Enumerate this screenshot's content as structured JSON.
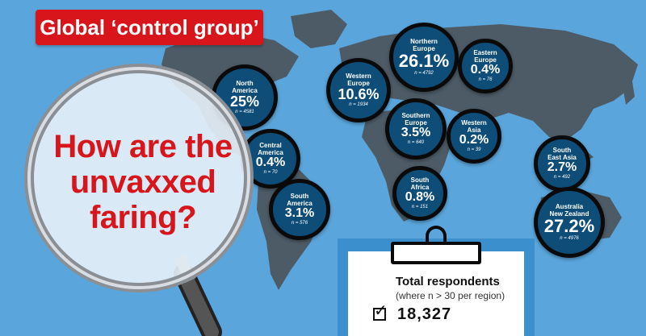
{
  "header": {
    "badge": "Global ‘control group’"
  },
  "headline": [
    "How are the",
    "unvaxxed",
    "faring?"
  ],
  "regions": [
    {
      "id": "north-america",
      "name": [
        "North",
        "America"
      ],
      "percent": "25%",
      "n": "n = 4581"
    },
    {
      "id": "central-america",
      "name": [
        "Central",
        "America"
      ],
      "percent": "0.4%",
      "n": "n = 70"
    },
    {
      "id": "south-america",
      "name": [
        "South",
        "America"
      ],
      "percent": "3.1%",
      "n": "n = 576"
    },
    {
      "id": "western-europe",
      "name": [
        "Western",
        "Europe"
      ],
      "percent": "10.6%",
      "n": "n = 1934"
    },
    {
      "id": "northern-europe",
      "name": [
        "Northern",
        "Europe"
      ],
      "percent": "26.1%",
      "n": "n = 4792"
    },
    {
      "id": "eastern-europe",
      "name": [
        "Eastern",
        "Europe"
      ],
      "percent": "0.4%",
      "n": "n = 76"
    },
    {
      "id": "southern-europe",
      "name": [
        "Southern",
        "Europe"
      ],
      "percent": "3.5%",
      "n": "n = 640"
    },
    {
      "id": "western-asia",
      "name": [
        "Western",
        "Asia"
      ],
      "percent": "0.2%",
      "n": "n = 39"
    },
    {
      "id": "south-africa",
      "name": [
        "South",
        "Africa"
      ],
      "percent": "0.8%",
      "n": "n = 151"
    },
    {
      "id": "south-east-asia",
      "name": [
        "South",
        "East Asia"
      ],
      "percent": "2.7%",
      "n": "n = 492"
    },
    {
      "id": "australia-new-zealand",
      "name": [
        "Australia",
        "New Zealand"
      ],
      "percent": "27.2%",
      "n": "n = 4976"
    }
  ],
  "clipboard": {
    "title": "Total respondents",
    "note": "(where n > 30 per region)",
    "total": "18,327"
  },
  "colors": {
    "ocean": "#5aa6dc",
    "land": "#4d5b66",
    "accent_red": "#d7151b",
    "circle_fill": "#0d4d78",
    "circle_border": "#0a0a0a"
  },
  "icons": [
    "magnifying-glass-icon",
    "clipboard-icon",
    "checkbox-icon"
  ]
}
